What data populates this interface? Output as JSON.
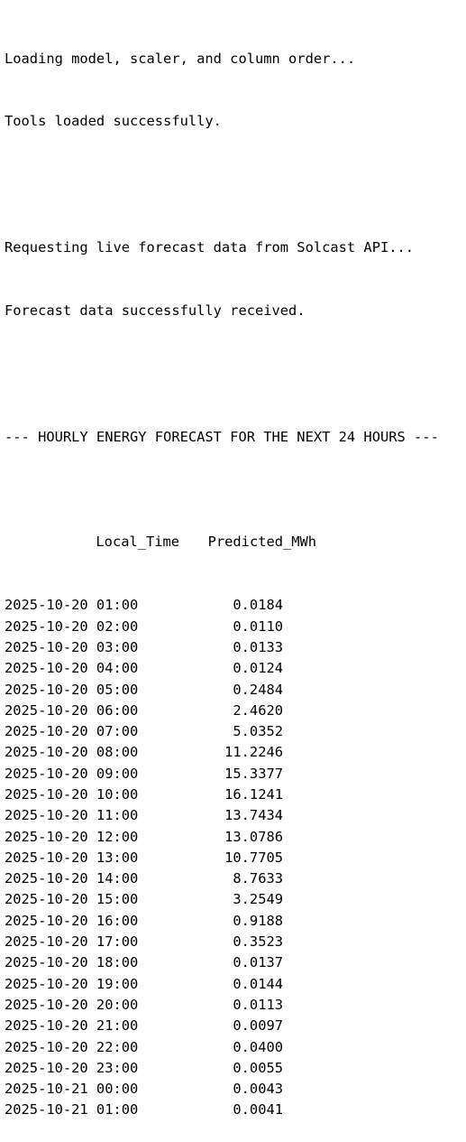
{
  "log": {
    "line1": "Loading model, scaler, and column order...",
    "line2": "Tools loaded successfully.",
    "line3": "Requesting live forecast data from Solcast API...",
    "line4": "Forecast data successfully received."
  },
  "forecast": {
    "heading": "--- HOURLY ENERGY FORECAST FOR THE NEXT 24 HOURS ---",
    "columns": [
      "Local_Time",
      "Predicted_MWh"
    ],
    "rows": [
      [
        "2025-10-20 01:00",
        "0.0184"
      ],
      [
        "2025-10-20 02:00",
        "0.0110"
      ],
      [
        "2025-10-20 03:00",
        "0.0133"
      ],
      [
        "2025-10-20 04:00",
        "0.0124"
      ],
      [
        "2025-10-20 05:00",
        "0.2484"
      ],
      [
        "2025-10-20 06:00",
        "2.4620"
      ],
      [
        "2025-10-20 07:00",
        "5.0352"
      ],
      [
        "2025-10-20 08:00",
        "11.2246"
      ],
      [
        "2025-10-20 09:00",
        "15.3377"
      ],
      [
        "2025-10-20 10:00",
        "16.1241"
      ],
      [
        "2025-10-20 11:00",
        "13.7434"
      ],
      [
        "2025-10-20 12:00",
        "13.0786"
      ],
      [
        "2025-10-20 13:00",
        "10.7705"
      ],
      [
        "2025-10-20 14:00",
        "8.7633"
      ],
      [
        "2025-10-20 15:00",
        "3.2549"
      ],
      [
        "2025-10-20 16:00",
        "0.9188"
      ],
      [
        "2025-10-20 17:00",
        "0.3523"
      ],
      [
        "2025-10-20 18:00",
        "0.0137"
      ],
      [
        "2025-10-20 19:00",
        "0.0144"
      ],
      [
        "2025-10-20 20:00",
        "0.0113"
      ],
      [
        "2025-10-20 21:00",
        "0.0097"
      ],
      [
        "2025-10-20 22:00",
        "0.0400"
      ],
      [
        "2025-10-20 23:00",
        "0.0055"
      ],
      [
        "2025-10-21 00:00",
        "0.0043"
      ],
      [
        "2025-10-21 01:00",
        "0.0041"
      ]
    ]
  }
}
